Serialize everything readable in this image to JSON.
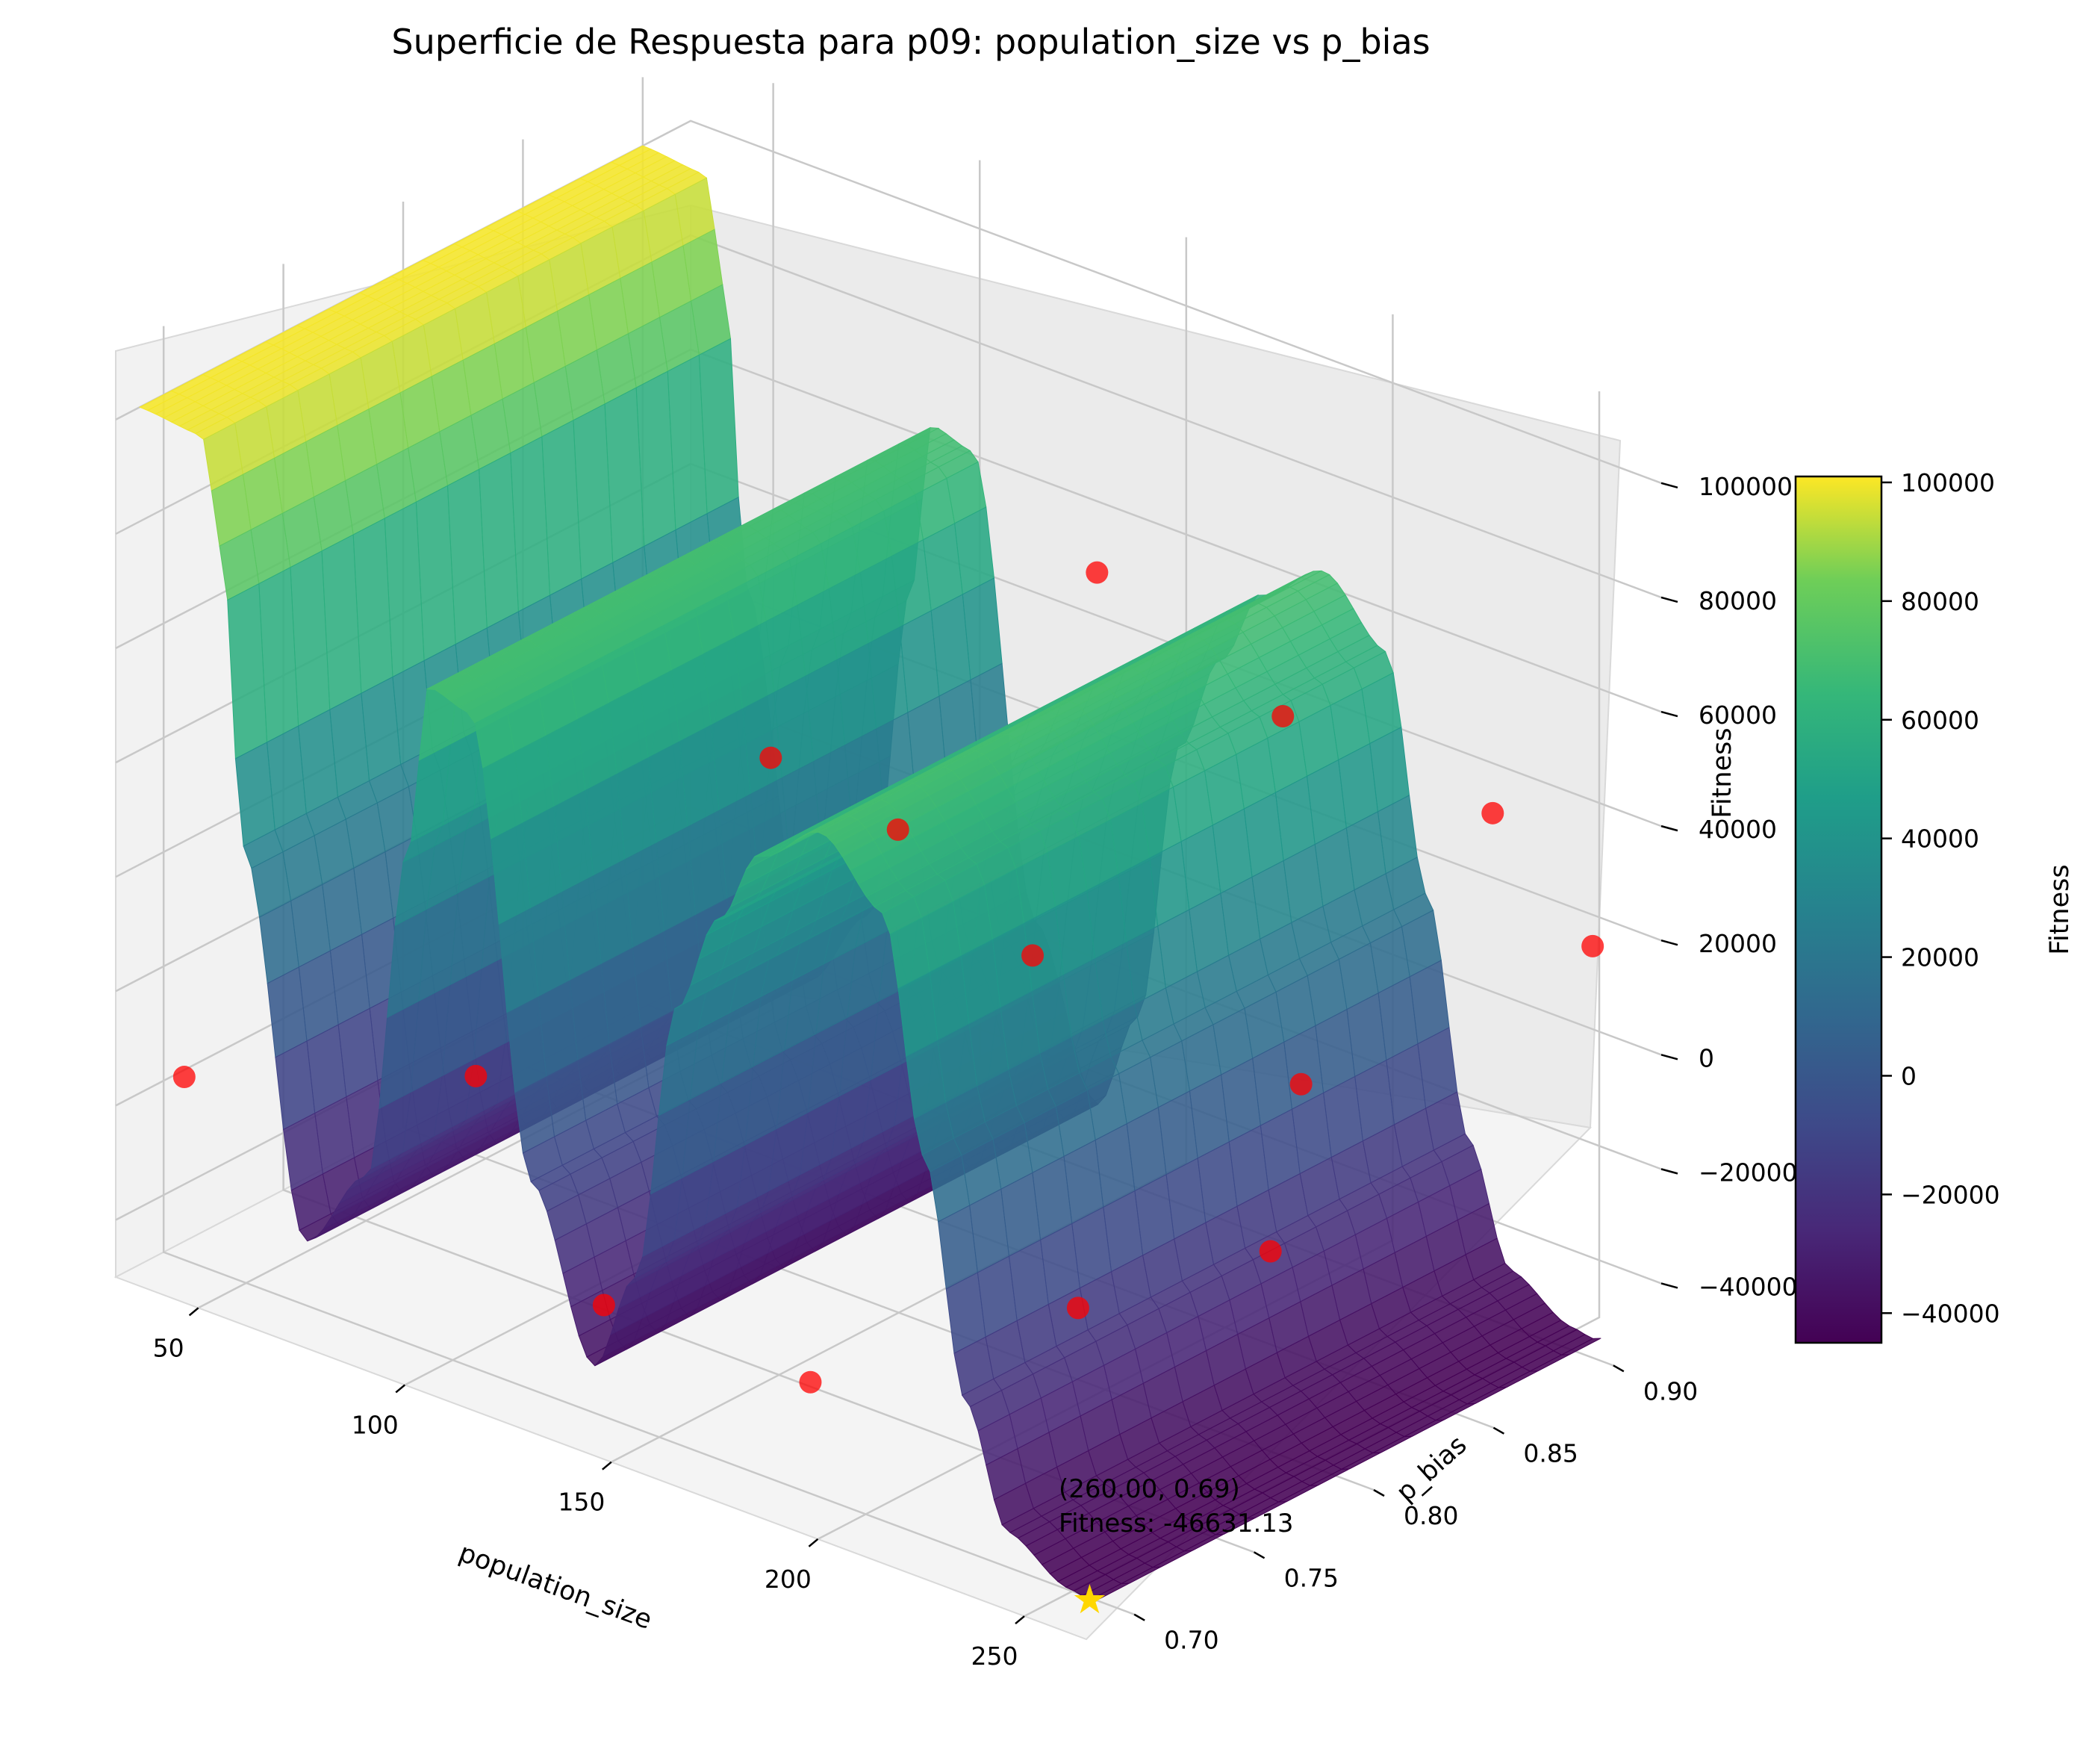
{
  "chart_data": {
    "type": "surface",
    "title": "Superficie de Respuesta para p09: population_size vs p_bias",
    "xlabel": "population_size",
    "ylabel": "p_bias",
    "zlabel": "Fitness",
    "colorbar_label": "Fitness",
    "colormap": "viridis",
    "x_ticks": [
      "50",
      "100",
      "150",
      "200",
      "250"
    ],
    "y_ticks": [
      "0.70",
      "0.75",
      "0.80",
      "0.85",
      "0.90"
    ],
    "z_ticks": [
      "−40000",
      "−20000",
      "0",
      "20000",
      "40000",
      "60000",
      "80000",
      "100000"
    ],
    "colorbar_ticks": [
      "−40000",
      "−20000",
      "0",
      "20000",
      "40000",
      "60000",
      "80000",
      "100000"
    ],
    "xlim": [
      30,
      265
    ],
    "ylim": [
      0.68,
      0.92
    ],
    "zlim": [
      -50000,
      112000
    ],
    "colorbar_range": [
      -45000,
      101000
    ],
    "surface_profile": {
      "population_size": [
        30,
        45,
        50,
        55,
        70,
        85,
        95,
        100,
        110,
        125,
        140,
        150,
        160,
        170,
        180,
        195,
        210,
        220,
        230,
        240,
        255,
        260,
        265
      ],
      "fitness": [
        100000,
        99000,
        80000,
        30000,
        -35000,
        -20000,
        40000,
        70000,
        68000,
        -10000,
        -38000,
        -20000,
        30000,
        48000,
        62000,
        70000,
        60000,
        20000,
        -20000,
        -40000,
        -46000,
        -46631,
        -45000
      ]
    },
    "sample_points": [
      {
        "x": 35,
        "y": 0.7,
        "z": -18000
      },
      {
        "x": 65,
        "y": 0.77,
        "z": -25000
      },
      {
        "x": 125,
        "y": 0.72,
        "z": -38000
      },
      {
        "x": 175,
        "y": 0.72,
        "z": -38000
      },
      {
        "x": 205,
        "y": 0.78,
        "z": -30000
      },
      {
        "x": 90,
        "y": 0.85,
        "z": 20000
      },
      {
        "x": 115,
        "y": 0.86,
        "z": 12000
      },
      {
        "x": 165,
        "y": 0.83,
        "z": 10000
      },
      {
        "x": 230,
        "y": 0.83,
        "z": 5000
      },
      {
        "x": 240,
        "y": 0.8,
        "z": -15000
      },
      {
        "x": 140,
        "y": 0.9,
        "z": 55000
      },
      {
        "x": 185,
        "y": 0.9,
        "z": 42000
      },
      {
        "x": 260,
        "y": 0.9,
        "z": 22000
      },
      {
        "x": 230,
        "y": 0.91,
        "z": 35000
      }
    ],
    "best_point": {
      "x": 260.0,
      "y": 0.69,
      "fitness": -46631.13
    },
    "annotation_line1": "(260.00, 0.69)",
    "annotation_line2": "Fitness: -46631.13",
    "sample_point_color": "#ff0000",
    "best_point_color": "#ffd700"
  }
}
